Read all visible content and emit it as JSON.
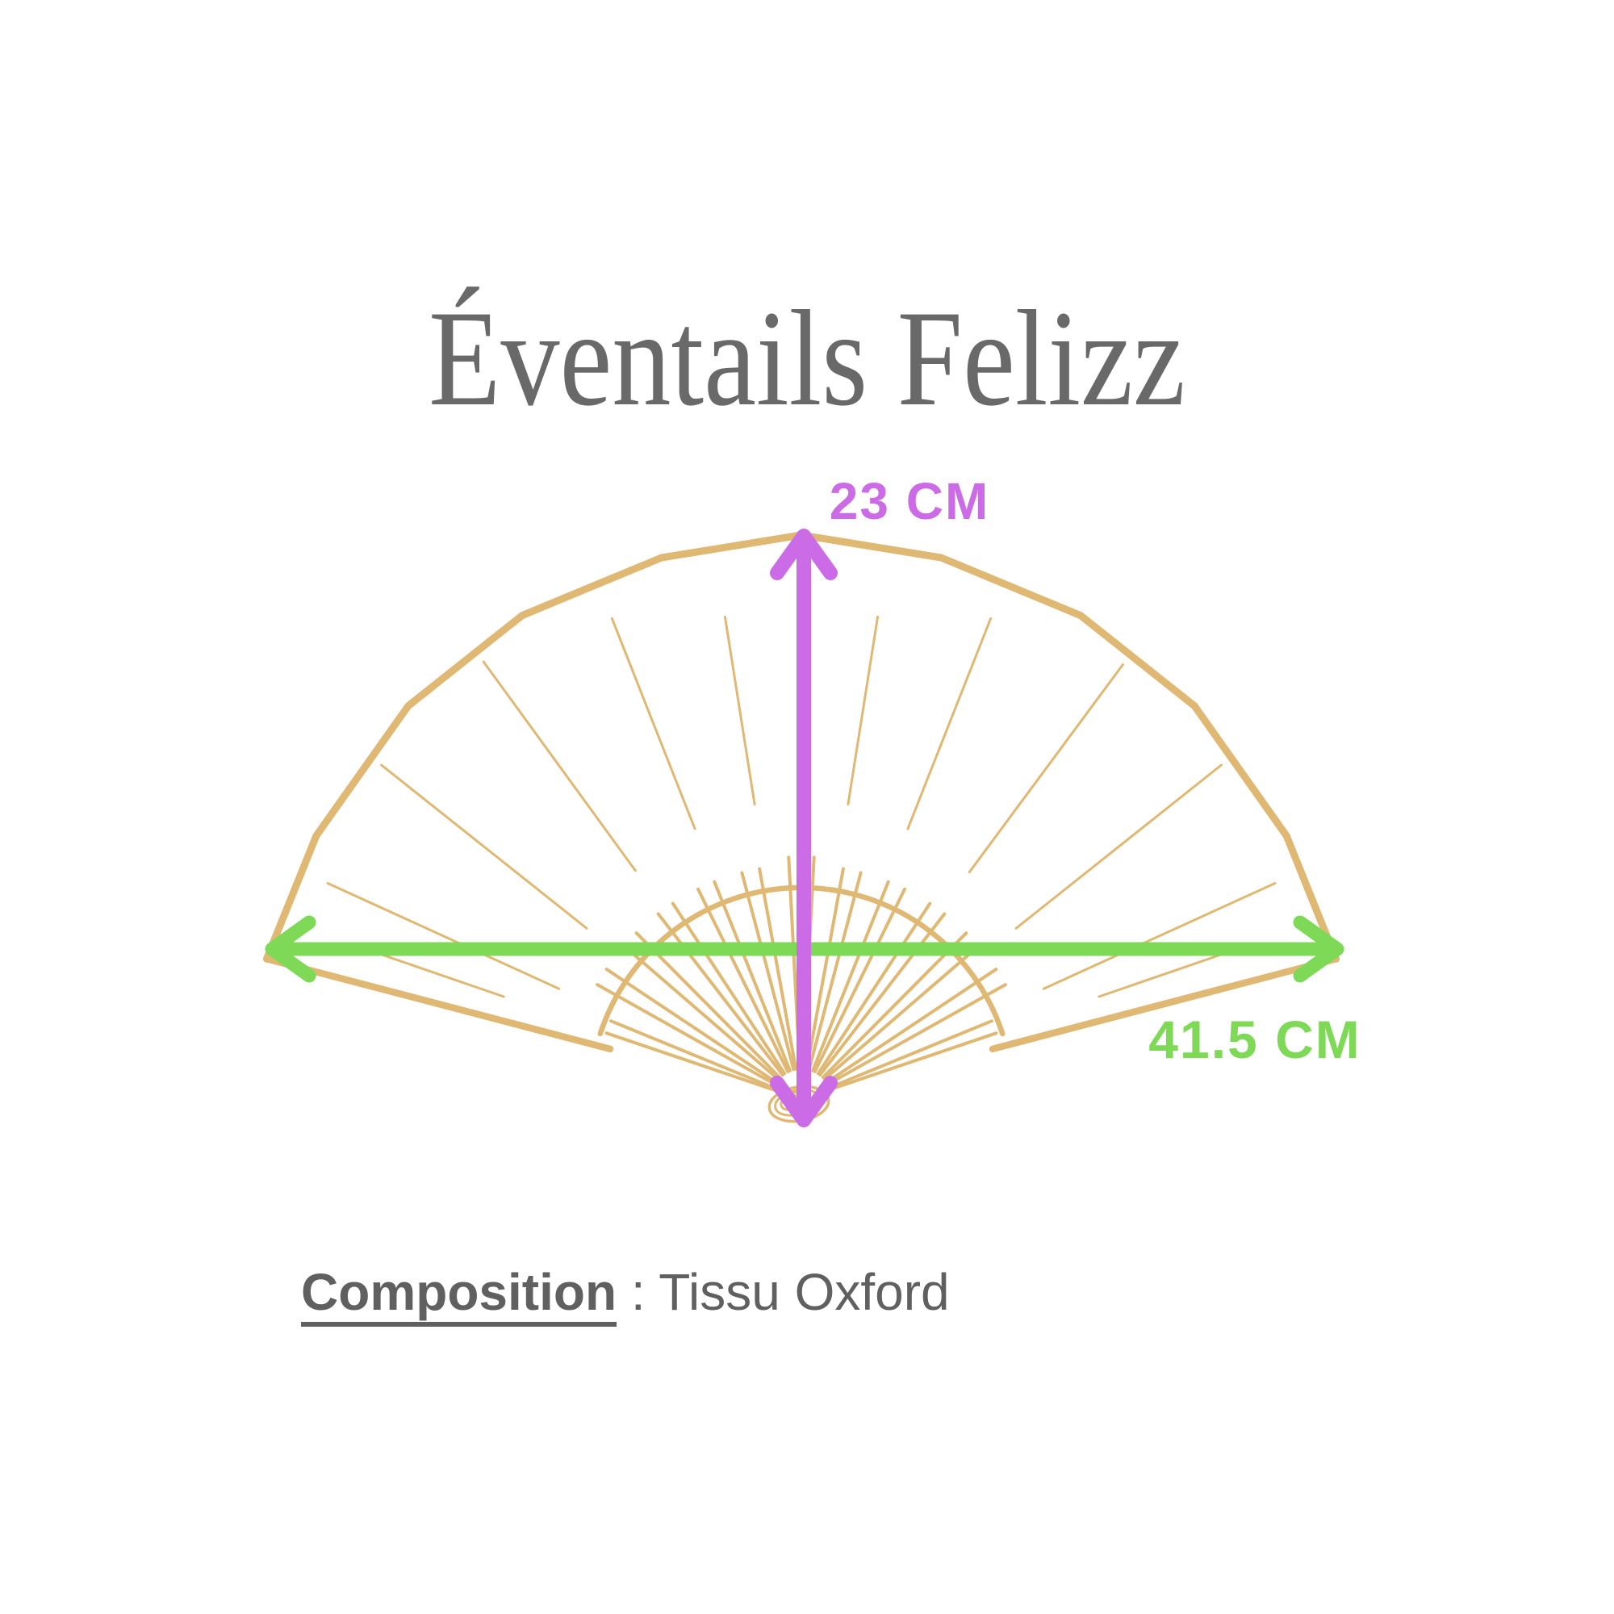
{
  "title": "Éventails Felizz",
  "fan": {
    "description": "folding hand fan outline drawing",
    "color": "#DFB873"
  },
  "dimensions": {
    "height": {
      "label": "23 CM",
      "color": "#CB6CE6"
    },
    "width": {
      "label": "41.5 CM",
      "color": "#7ED957"
    }
  },
  "composition": {
    "label": "Composition",
    "separator": " : ",
    "value": "Tissu Oxford"
  },
  "colors": {
    "background": "#FFFFFF",
    "title_text": "#696969",
    "body_text": "#606060"
  }
}
